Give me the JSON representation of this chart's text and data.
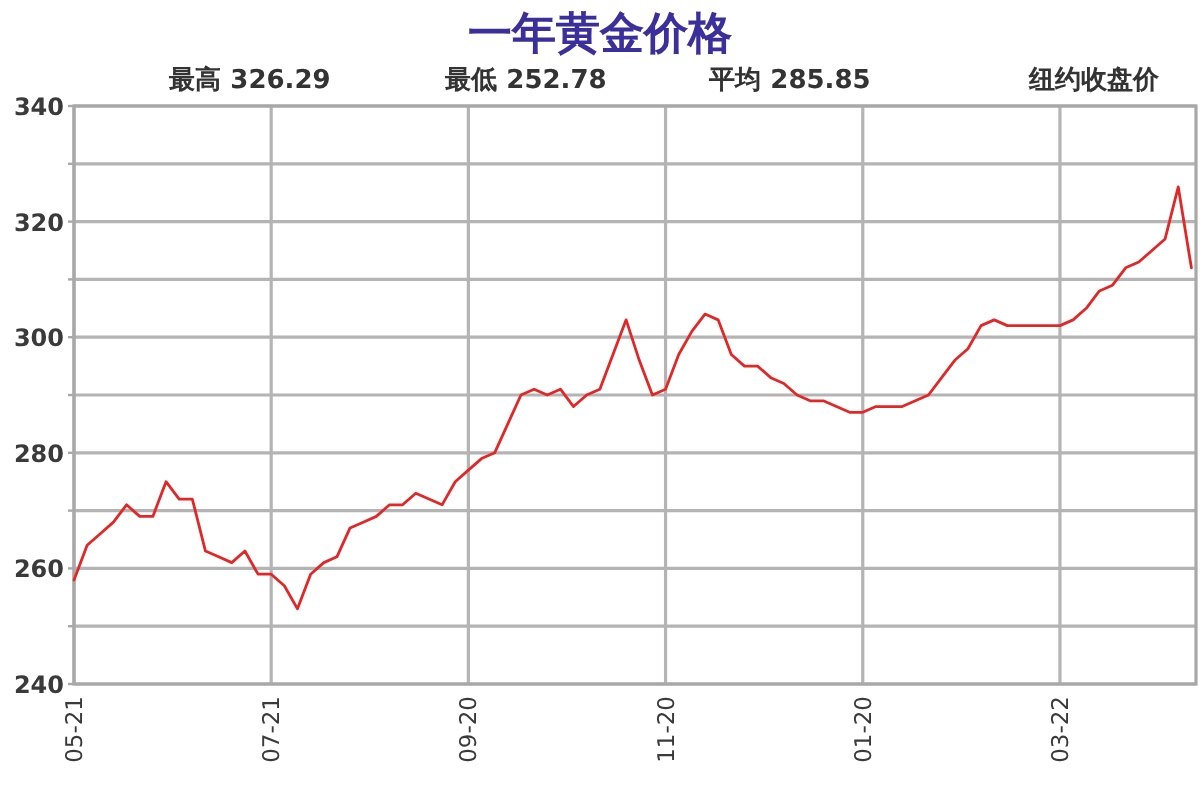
{
  "chart_data": {
    "type": "line",
    "title": "一年黄金价格",
    "annotations": [
      "最高 326.29",
      "最低 252.78",
      "平均 285.85",
      "纽约收盘价"
    ],
    "categories": [
      "05-21",
      null,
      null,
      null,
      null,
      null,
      null,
      null,
      null,
      null,
      null,
      null,
      null,
      null,
      null,
      "07-21",
      null,
      null,
      null,
      null,
      null,
      null,
      null,
      null,
      null,
      null,
      null,
      null,
      null,
      null,
      "09-20",
      null,
      null,
      null,
      null,
      null,
      null,
      null,
      null,
      null,
      null,
      null,
      null,
      null,
      null,
      "11-20",
      null,
      null,
      null,
      null,
      null,
      null,
      null,
      null,
      null,
      null,
      null,
      null,
      null,
      null,
      "01-20",
      null,
      null,
      null,
      null,
      null,
      null,
      null,
      null,
      null,
      null,
      null,
      null,
      null,
      null,
      "03-22",
      null,
      null,
      null,
      null,
      null,
      null,
      null,
      null,
      null,
      null
    ],
    "values": [
      258,
      264,
      266,
      268,
      271,
      269,
      269,
      275,
      272,
      272,
      263,
      262,
      261,
      263,
      259,
      259,
      257,
      253,
      259,
      261,
      262,
      267,
      268,
      269,
      271,
      271,
      273,
      272,
      271,
      275,
      277,
      279,
      280,
      285,
      290,
      291,
      290,
      291,
      288,
      290,
      291,
      297,
      303,
      296,
      290,
      291,
      297,
      301,
      304,
      303,
      297,
      295,
      295,
      293,
      292,
      290,
      289,
      289,
      288,
      287,
      287,
      288,
      288,
      288,
      289,
      290,
      293,
      296,
      298,
      302,
      303,
      302,
      302,
      302,
      302,
      302,
      303,
      305,
      308,
      309,
      312,
      313,
      315,
      317,
      326,
      312
    ],
    "color": "#e32626",
    "ylim": [
      240,
      340
    ],
    "yticks": [
      240,
      {
        "value": 250,
        "label": null
      },
      260,
      {
        "value": 270,
        "label": null
      },
      280,
      {
        "value": 290,
        "label": null
      },
      300,
      {
        "value": 310,
        "label": null
      },
      320,
      {
        "value": 330,
        "label": null
      },
      340
    ],
    "grid": true
  }
}
